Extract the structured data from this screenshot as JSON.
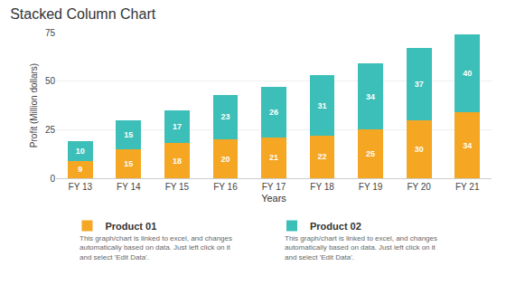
{
  "chart_data": {
    "type": "bar",
    "title": "Stacked Column Chart",
    "categories": [
      "FY 13",
      "FY 14",
      "FY 15",
      "FY 16",
      "FY 17",
      "FY 18",
      "FY 19",
      "FY 20",
      "FY 21"
    ],
    "series": [
      {
        "name": "Product 01",
        "color": "#F5A623",
        "values": [
          9,
          15,
          18,
          20,
          21,
          22,
          25,
          30,
          34
        ]
      },
      {
        "name": "Product 02",
        "color": "#3CBFB8",
        "values": [
          10,
          15,
          17,
          23,
          26,
          31,
          34,
          37,
          40
        ]
      }
    ],
    "xlabel": "Years",
    "ylabel": "Profit (Million dollars)",
    "ylim": [
      0,
      75
    ],
    "yticks": [
      0,
      25,
      50,
      75
    ],
    "grid": true,
    "stacked": true,
    "data_labels": true,
    "legend": "bottom",
    "annotations": [
      "This graph/chart is linked to excel, and changes\nautomatically based on data. Just left click on it\nand select 'Edit Data'.",
      "This graph/chart is linked to excel, and changes\nautomatically based on data. Just left click on it\nand select 'Edit Data'."
    ]
  }
}
